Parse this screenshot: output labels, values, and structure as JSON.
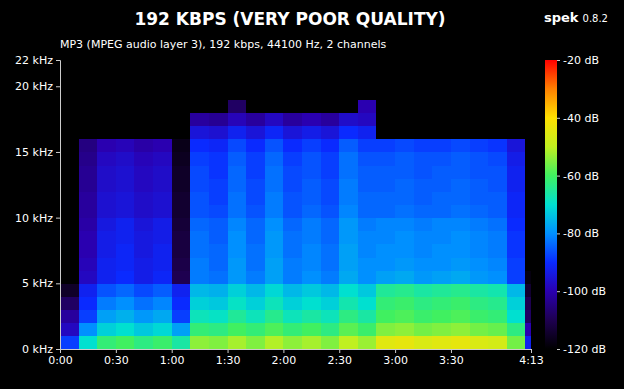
{
  "chart_data": {
    "type": "heatmap",
    "title": "192 KBPS (VERY POOR QUALITY)",
    "subtitle": "MP3 (MPEG audio layer 3), 192 kbps, 44100 Hz, 2 channels",
    "app_name": "spek",
    "app_version": "0.8.2",
    "xlim": [
      0,
      253
    ],
    "xticks": [
      {
        "value": 0,
        "label": "0:00"
      },
      {
        "value": 30,
        "label": "0:30"
      },
      {
        "value": 60,
        "label": "1:00"
      },
      {
        "value": 90,
        "label": "1:30"
      },
      {
        "value": 120,
        "label": "2:00"
      },
      {
        "value": 150,
        "label": "2:30"
      },
      {
        "value": 180,
        "label": "3:00"
      },
      {
        "value": 210,
        "label": "3:30"
      },
      {
        "value": 253,
        "label": "4:13"
      }
    ],
    "ylim": [
      0,
      22
    ],
    "yticks": [
      {
        "value": 0,
        "label": "0 kHz"
      },
      {
        "value": 5,
        "label": "5 kHz"
      },
      {
        "value": 10,
        "label": "10 kHz"
      },
      {
        "value": 15,
        "label": "15 kHz"
      },
      {
        "value": 20,
        "label": "20 kHz"
      },
      {
        "value": 22,
        "label": "22 kHz"
      }
    ],
    "x_bins": [
      0,
      10,
      20,
      30,
      40,
      50,
      60,
      70,
      80,
      90,
      100,
      110,
      120,
      130,
      140,
      150,
      160,
      170,
      180,
      190,
      200,
      210,
      220,
      230,
      240,
      250,
      253
    ],
    "y_bins": [
      0,
      1,
      2,
      3,
      4,
      5,
      6,
      7,
      8,
      9,
      10,
      11,
      12,
      13,
      14,
      15,
      16,
      17,
      18,
      19,
      20,
      21,
      22
    ],
    "cells": [
      [
        -88,
        -70,
        -62,
        -60,
        -63,
        -61,
        -66,
        -54,
        -55,
        -52,
        -55,
        -51,
        -54,
        -52,
        -55,
        -50,
        -53,
        -45,
        -44,
        -46,
        -45,
        -44,
        -46,
        -47,
        -56,
        -92
      ],
      [
        -98,
        -80,
        -72,
        -70,
        -73,
        -71,
        -78,
        -62,
        -63,
        -60,
        -62,
        -59,
        -62,
        -60,
        -63,
        -58,
        -61,
        -55,
        -54,
        -56,
        -55,
        -54,
        -56,
        -57,
        -63,
        -100
      ],
      [
        -102,
        -88,
        -78,
        -76,
        -79,
        -77,
        -88,
        -68,
        -69,
        -65,
        -68,
        -64,
        -68,
        -66,
        -68,
        -63,
        -66,
        -60,
        -59,
        -61,
        -60,
        -59,
        -61,
        -62,
        -70,
        -108
      ],
      [
        -108,
        -90,
        -82,
        -80,
        -83,
        -81,
        -90,
        -72,
        -73,
        -69,
        -72,
        -68,
        -72,
        -70,
        -72,
        -67,
        -70,
        -62,
        -61,
        -63,
        -62,
        -61,
        -63,
        -64,
        -72,
        -110
      ],
      [
        -115,
        -92,
        -86,
        -84,
        -87,
        -85,
        -92,
        -75,
        -76,
        -72,
        -75,
        -71,
        -75,
        -73,
        -75,
        -70,
        -73,
        -65,
        -64,
        -66,
        -65,
        -64,
        -66,
        -67,
        -75,
        -114
      ],
      [
        -120,
        -98,
        -92,
        -90,
        -93,
        -91,
        -110,
        -82,
        -83,
        -79,
        -82,
        -78,
        -82,
        -80,
        -82,
        -77,
        -80,
        -78,
        -77,
        -79,
        -78,
        -77,
        -79,
        -80,
        -88,
        -118
      ],
      [
        -120,
        -99,
        -92,
        -91,
        -93,
        -92,
        -111,
        -82,
        -84,
        -79,
        -83,
        -78,
        -82,
        -81,
        -83,
        -78,
        -80,
        -80,
        -79,
        -80,
        -80,
        -79,
        -80,
        -81,
        -88,
        -120
      ],
      [
        -120,
        -100,
        -93,
        -91,
        -94,
        -92,
        -112,
        -83,
        -84,
        -80,
        -83,
        -79,
        -83,
        -81,
        -83,
        -78,
        -81,
        -80,
        -80,
        -81,
        -80,
        -80,
        -81,
        -82,
        -89,
        -120
      ],
      [
        -120,
        -100,
        -93,
        -92,
        -94,
        -93,
        -112,
        -83,
        -85,
        -80,
        -84,
        -79,
        -83,
        -82,
        -84,
        -79,
        -81,
        -81,
        -80,
        -81,
        -81,
        -80,
        -81,
        -82,
        -89,
        -120
      ],
      [
        -120,
        -101,
        -94,
        -92,
        -95,
        -93,
        -113,
        -84,
        -85,
        -81,
        -84,
        -80,
        -84,
        -82,
        -84,
        -79,
        -82,
        -81,
        -81,
        -82,
        -81,
        -81,
        -82,
        -83,
        -90,
        -120
      ],
      [
        -120,
        -102,
        -96,
        -95,
        -97,
        -96,
        -114,
        -86,
        -87,
        -83,
        -86,
        -82,
        -86,
        -84,
        -86,
        -81,
        -84,
        -84,
        -83,
        -84,
        -84,
        -83,
        -84,
        -85,
        -91,
        -120
      ],
      [
        -120,
        -102,
        -96,
        -95,
        -97,
        -96,
        -114,
        -86,
        -88,
        -83,
        -87,
        -82,
        -86,
        -85,
        -87,
        -82,
        -84,
        -84,
        -84,
        -85,
        -84,
        -84,
        -85,
        -85,
        -91,
        -120
      ],
      [
        -120,
        -103,
        -97,
        -96,
        -98,
        -97,
        -115,
        -87,
        -88,
        -84,
        -87,
        -83,
        -87,
        -85,
        -87,
        -82,
        -85,
        -85,
        -84,
        -85,
        -85,
        -84,
        -85,
        -86,
        -92,
        -120
      ],
      [
        -120,
        -103,
        -97,
        -96,
        -98,
        -97,
        -115,
        -87,
        -89,
        -84,
        -88,
        -83,
        -87,
        -86,
        -88,
        -83,
        -85,
        -85,
        -85,
        -86,
        -85,
        -85,
        -86,
        -86,
        -92,
        -120
      ],
      [
        -120,
        -104,
        -98,
        -97,
        -99,
        -98,
        -116,
        -88,
        -89,
        -85,
        -88,
        -84,
        -88,
        -86,
        -88,
        -83,
        -86,
        -86,
        -85,
        -86,
        -86,
        -85,
        -86,
        -87,
        -93,
        -120
      ],
      [
        -120,
        -105,
        -100,
        -99,
        -101,
        -100,
        -117,
        -90,
        -91,
        -87,
        -90,
        -86,
        -90,
        -88,
        -90,
        -85,
        -88,
        -88,
        -87,
        -88,
        -88,
        -87,
        -88,
        -89,
        -95,
        -120
      ],
      [
        -120,
        -120,
        -120,
        -120,
        -120,
        -120,
        -120,
        -95,
        -96,
        -92,
        -95,
        -91,
        -95,
        -93,
        -95,
        -90,
        -92,
        -120,
        -120,
        -120,
        -120,
        -120,
        -120,
        -120,
        -120,
        -120
      ],
      [
        -120,
        -120,
        -120,
        -120,
        -120,
        -120,
        -120,
        -102,
        -103,
        -99,
        -102,
        -98,
        -102,
        -100,
        -102,
        -97,
        -98,
        -120,
        -120,
        -120,
        -120,
        -120,
        -120,
        -120,
        -120,
        -120
      ],
      [
        -120,
        -120,
        -120,
        -120,
        -120,
        -120,
        -120,
        -120,
        -120,
        -108,
        -120,
        -120,
        -120,
        -120,
        -120,
        -120,
        -100,
        -120,
        -120,
        -120,
        -120,
        -120,
        -120,
        -120,
        -120,
        -120
      ],
      [
        -120,
        -120,
        -120,
        -120,
        -120,
        -120,
        -120,
        -120,
        -120,
        -120,
        -120,
        -120,
        -120,
        -120,
        -120,
        -120,
        -120,
        -120,
        -120,
        -120,
        -120,
        -120,
        -120,
        -120,
        -120,
        -120
      ],
      [
        -120,
        -120,
        -120,
        -120,
        -120,
        -120,
        -120,
        -120,
        -120,
        -120,
        -120,
        -120,
        -120,
        -120,
        -120,
        -120,
        -120,
        -120,
        -120,
        -120,
        -120,
        -120,
        -120,
        -120,
        -120,
        -120
      ],
      [
        -120,
        -120,
        -120,
        -120,
        -120,
        -120,
        -120,
        -120,
        -120,
        -120,
        -120,
        -120,
        -120,
        -120,
        -120,
        -120,
        -120,
        -120,
        -120,
        -120,
        -120,
        -120,
        -120,
        -120,
        -120,
        -120
      ]
    ],
    "colorbar": {
      "range": [
        -120,
        -20
      ],
      "ticks": [
        {
          "value": -20,
          "label": "-20 dB"
        },
        {
          "value": -40,
          "label": "-40 dB"
        },
        {
          "value": -60,
          "label": "-60 dB"
        },
        {
          "value": -80,
          "label": "-80 dB"
        },
        {
          "value": -100,
          "label": "-100 dB"
        },
        {
          "value": -120,
          "label": "-120 dB"
        }
      ]
    }
  }
}
